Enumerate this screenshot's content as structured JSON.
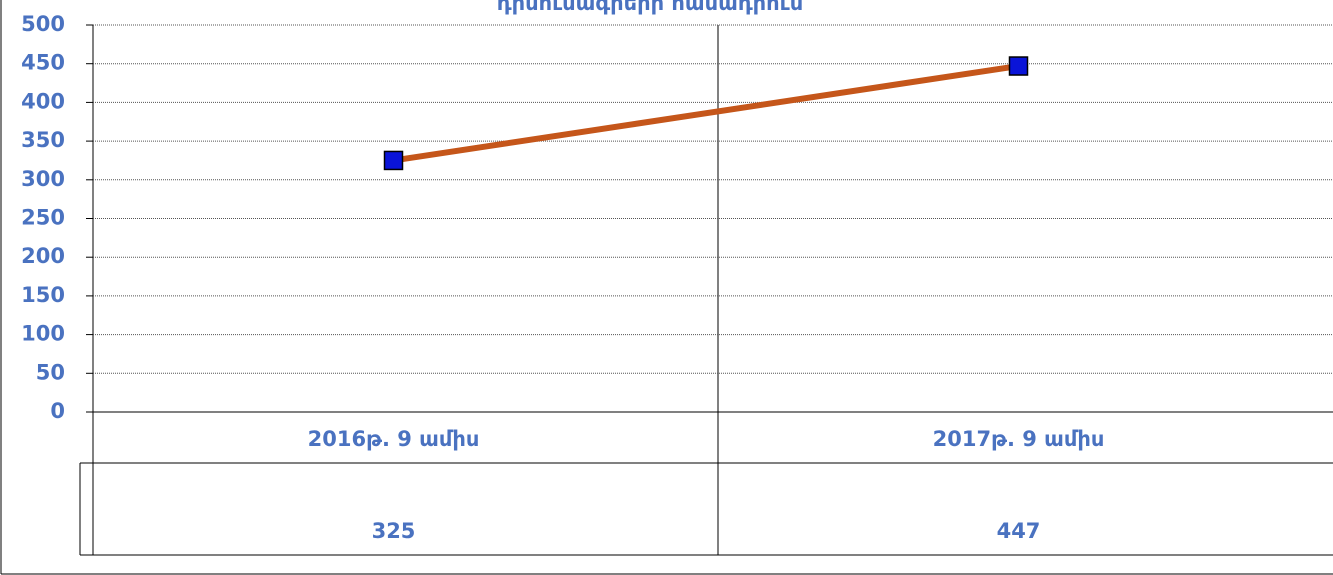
{
  "chart_data": {
    "type": "line",
    "title": "դիմումագրերի   համադրում",
    "categories": [
      "2016թ. 9 ամիս",
      "2017թ. 9 ամիս"
    ],
    "series": [
      {
        "color": "#c5561a",
        "marker_color": "#0a14d8",
        "values": [
          325,
          447
        ]
      }
    ],
    "ylim": [
      0,
      500
    ],
    "yticks": [
      0,
      50,
      100,
      150,
      200,
      250,
      300,
      350,
      400,
      450,
      500
    ],
    "grid": true,
    "data_table": true
  }
}
